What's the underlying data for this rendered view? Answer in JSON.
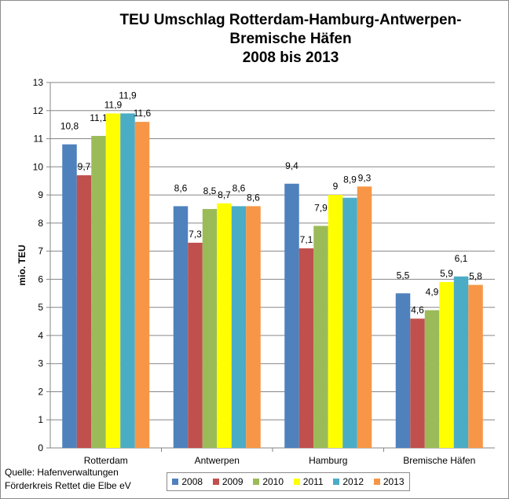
{
  "chart_data": {
    "type": "bar",
    "title_lines": [
      "TEU Umschlag Rotterdam-Hamburg-Antwerpen-",
      "Bremische Häfen",
      "2008 bis 2013"
    ],
    "xlabel": "",
    "ylabel": "mio. TEU",
    "ylim": [
      0,
      13
    ],
    "yticks": [
      "0",
      "1",
      "2",
      "3",
      "4",
      "5",
      "6",
      "7",
      "8",
      "9",
      "10",
      "11",
      "12",
      "13"
    ],
    "grid": true,
    "legend_position": "bottom",
    "categories": [
      "Rotterdam",
      "Antwerpen",
      "Hamburg",
      "Bremische Häfen"
    ],
    "series": [
      {
        "name": "2008",
        "color": "#4f81bd",
        "values": [
          10.8,
          8.6,
          9.4,
          5.5
        ],
        "labels": [
          "10,8",
          "8,6",
          "9,4",
          "5,5"
        ]
      },
      {
        "name": "2009",
        "color": "#c0504d",
        "values": [
          9.7,
          7.3,
          7.1,
          4.6
        ],
        "labels": [
          "9,7",
          "7,3",
          "7,1",
          "4,6"
        ]
      },
      {
        "name": "2010",
        "color": "#9bbb59",
        "values": [
          11.1,
          8.5,
          7.9,
          4.9
        ],
        "labels": [
          "11,1",
          "8,5",
          "7,9",
          "4,9"
        ]
      },
      {
        "name": "2011",
        "color": "#ffff00",
        "values": [
          11.9,
          8.7,
          9.0,
          5.9
        ],
        "labels": [
          "11,9",
          "8,7",
          "9",
          "5,9"
        ]
      },
      {
        "name": "2012",
        "color": "#4bacc6",
        "values": [
          11.9,
          8.6,
          8.9,
          6.1
        ],
        "labels": [
          "11,9",
          "8,6",
          "8,9",
          "6,1"
        ]
      },
      {
        "name": "2013",
        "color": "#f79646",
        "values": [
          11.6,
          8.6,
          9.3,
          5.8
        ],
        "labels": [
          "11,6",
          "8,6",
          "9,3",
          "5,8"
        ]
      }
    ]
  },
  "source": {
    "line1": "Quelle: Hafenverwaltungen",
    "line2": "Förderkreis Rettet die Elbe eV"
  }
}
